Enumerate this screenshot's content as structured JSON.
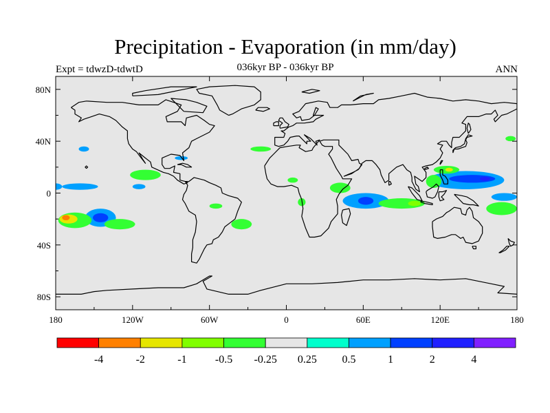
{
  "title": "Precipitation - Evaporation (in mm/day)",
  "subtitle": "036kyr BP - 036kyr BP",
  "left_label": "Expt = tdwzD-tdwtD",
  "right_label": "ANN",
  "map": {
    "lon_range": [
      -180,
      180
    ],
    "lat_range": [
      -90,
      90
    ],
    "ocean_color": "#e6e6e6",
    "coastline_color": "#000000"
  },
  "axes": {
    "y_ticks": [
      {
        "lat": 80,
        "label": "80N"
      },
      {
        "lat": 40,
        "label": "40N"
      },
      {
        "lat": 0,
        "label": "0"
      },
      {
        "lat": -40,
        "label": "40S"
      },
      {
        "lat": -80,
        "label": "80S"
      }
    ],
    "x_ticks": [
      {
        "lon": -180,
        "label": "180"
      },
      {
        "lon": -120,
        "label": "120W"
      },
      {
        "lon": -60,
        "label": "60W"
      },
      {
        "lon": 0,
        "label": "0"
      },
      {
        "lon": 60,
        "label": "60E"
      },
      {
        "lon": 120,
        "label": "120E"
      },
      {
        "lon": 180,
        "label": "180"
      }
    ]
  },
  "colorbar": {
    "colors": [
      "#ff0000",
      "#ff8000",
      "#e6e600",
      "#80ff00",
      "#33ff33",
      "#e6e6e6",
      "#00ffcc",
      "#00a0ff",
      "#0040ff",
      "#2020ff",
      "#8020ff"
    ],
    "labels": [
      "-4",
      "-2",
      "-1",
      "-0.5",
      "-0.25",
      "0.25",
      "0.5",
      "1",
      "2",
      "4"
    ]
  },
  "anomalies": [
    {
      "lon": -145,
      "lat": -19,
      "rx": 12,
      "ry": 7,
      "level": "0.5"
    },
    {
      "lon": -145,
      "lat": -19,
      "rx": 6,
      "ry": 3.5,
      "level": "1"
    },
    {
      "lon": -165,
      "lat": -21,
      "rx": 13,
      "ry": 6,
      "level": "-0.25"
    },
    {
      "lon": -170,
      "lat": -20,
      "rx": 7,
      "ry": 3.5,
      "level": "-1"
    },
    {
      "lon": -172,
      "lat": -19,
      "rx": 3,
      "ry": 2,
      "level": "-2"
    },
    {
      "lon": -130,
      "lat": -24,
      "rx": 12,
      "ry": 4,
      "level": "-0.25"
    },
    {
      "lon": -180,
      "lat": 5,
      "rx": 5,
      "ry": 2.5,
      "level": "0.5"
    },
    {
      "lon": -161,
      "lat": 5,
      "rx": 14,
      "ry": 2.5,
      "level": "0.5"
    },
    {
      "lon": -158,
      "lat": 34,
      "rx": 4,
      "ry": 2,
      "level": "0.5"
    },
    {
      "lon": -110,
      "lat": 14,
      "rx": 12,
      "ry": 4,
      "level": "-0.25"
    },
    {
      "lon": -115,
      "lat": 5,
      "rx": 5,
      "ry": 2,
      "level": "0.5"
    },
    {
      "lon": -82,
      "lat": 27,
      "rx": 5,
      "ry": 1.5,
      "level": "0.5"
    },
    {
      "lon": -55,
      "lat": -10,
      "rx": 5,
      "ry": 2,
      "level": "-0.25"
    },
    {
      "lon": -35,
      "lat": -24,
      "rx": 8,
      "ry": 4,
      "level": "-0.25"
    },
    {
      "lon": -20,
      "lat": 34,
      "rx": 8,
      "ry": 2,
      "level": "-0.25"
    },
    {
      "lon": 5,
      "lat": 10,
      "rx": 4,
      "ry": 2,
      "level": "-0.25"
    },
    {
      "lon": 12,
      "lat": -7,
      "rx": 3,
      "ry": 3,
      "level": "-0.25"
    },
    {
      "lon": 42,
      "lat": 4,
      "rx": 8,
      "ry": 4,
      "level": "-0.25"
    },
    {
      "lon": 62,
      "lat": -6,
      "rx": 18,
      "ry": 6,
      "level": "0.5"
    },
    {
      "lon": 62,
      "lat": -6,
      "rx": 6,
      "ry": 3,
      "level": "1"
    },
    {
      "lon": 90,
      "lat": -8,
      "rx": 18,
      "ry": 4,
      "level": "-0.25"
    },
    {
      "lon": 100,
      "lat": -8,
      "rx": 5,
      "ry": 2,
      "level": "-0.5"
    },
    {
      "lon": 140,
      "lat": 10,
      "rx": 30,
      "ry": 7,
      "level": "0.5"
    },
    {
      "lon": 145,
      "lat": 11,
      "rx": 18,
      "ry": 3,
      "level": "1"
    },
    {
      "lon": 155,
      "lat": 11,
      "rx": 4,
      "ry": 1.5,
      "level": "2"
    },
    {
      "lon": 115,
      "lat": 9,
      "rx": 6,
      "ry": 5,
      "level": "-0.25"
    },
    {
      "lon": 125,
      "lat": 18,
      "rx": 10,
      "ry": 3,
      "level": "-0.25"
    },
    {
      "lon": 127,
      "lat": 18,
      "rx": 3,
      "ry": 1.5,
      "level": "-1"
    },
    {
      "lon": 168,
      "lat": -12,
      "rx": 12,
      "ry": 5,
      "level": "-0.25"
    },
    {
      "lon": 170,
      "lat": -3,
      "rx": 10,
      "ry": 3,
      "level": "0.5"
    },
    {
      "lon": 175,
      "lat": 42,
      "rx": 4,
      "ry": 2,
      "level": "-0.25"
    }
  ]
}
